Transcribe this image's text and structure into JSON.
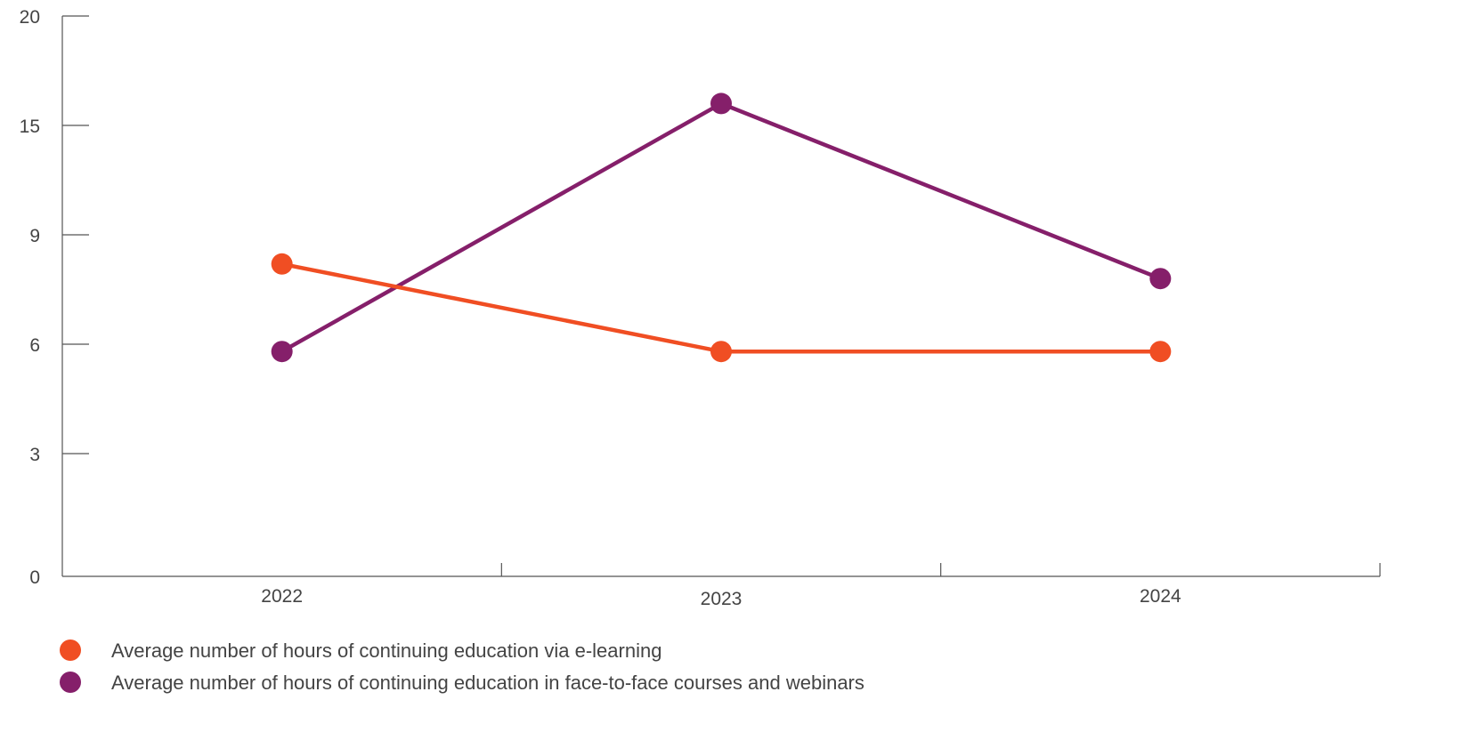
{
  "chart_data": {
    "type": "line",
    "title": "",
    "xlabel": "",
    "ylabel": "",
    "categories": [
      "2022",
      "2023",
      "2024"
    ],
    "y_ticks": [
      {
        "value": 0,
        "label": "0"
      },
      {
        "value": 3,
        "label": "3"
      },
      {
        "value": 6,
        "label": "6"
      },
      {
        "value": 9,
        "label": "9"
      },
      {
        "value": 15,
        "label": "15"
      },
      {
        "value": 20,
        "label": "20"
      }
    ],
    "grid": false,
    "legend_position": "bottom-left",
    "series": [
      {
        "name": "Average number of hours of continuing education via e-learning",
        "color": "#F04E23",
        "values": [
          8.2,
          5.8,
          5.8
        ]
      },
      {
        "name": "Average number of hours of continuing education in face-to-face courses and webinars",
        "color": "#851F6A",
        "values": [
          5.8,
          16,
          7.8
        ]
      }
    ],
    "axis_color": "#555555"
  }
}
